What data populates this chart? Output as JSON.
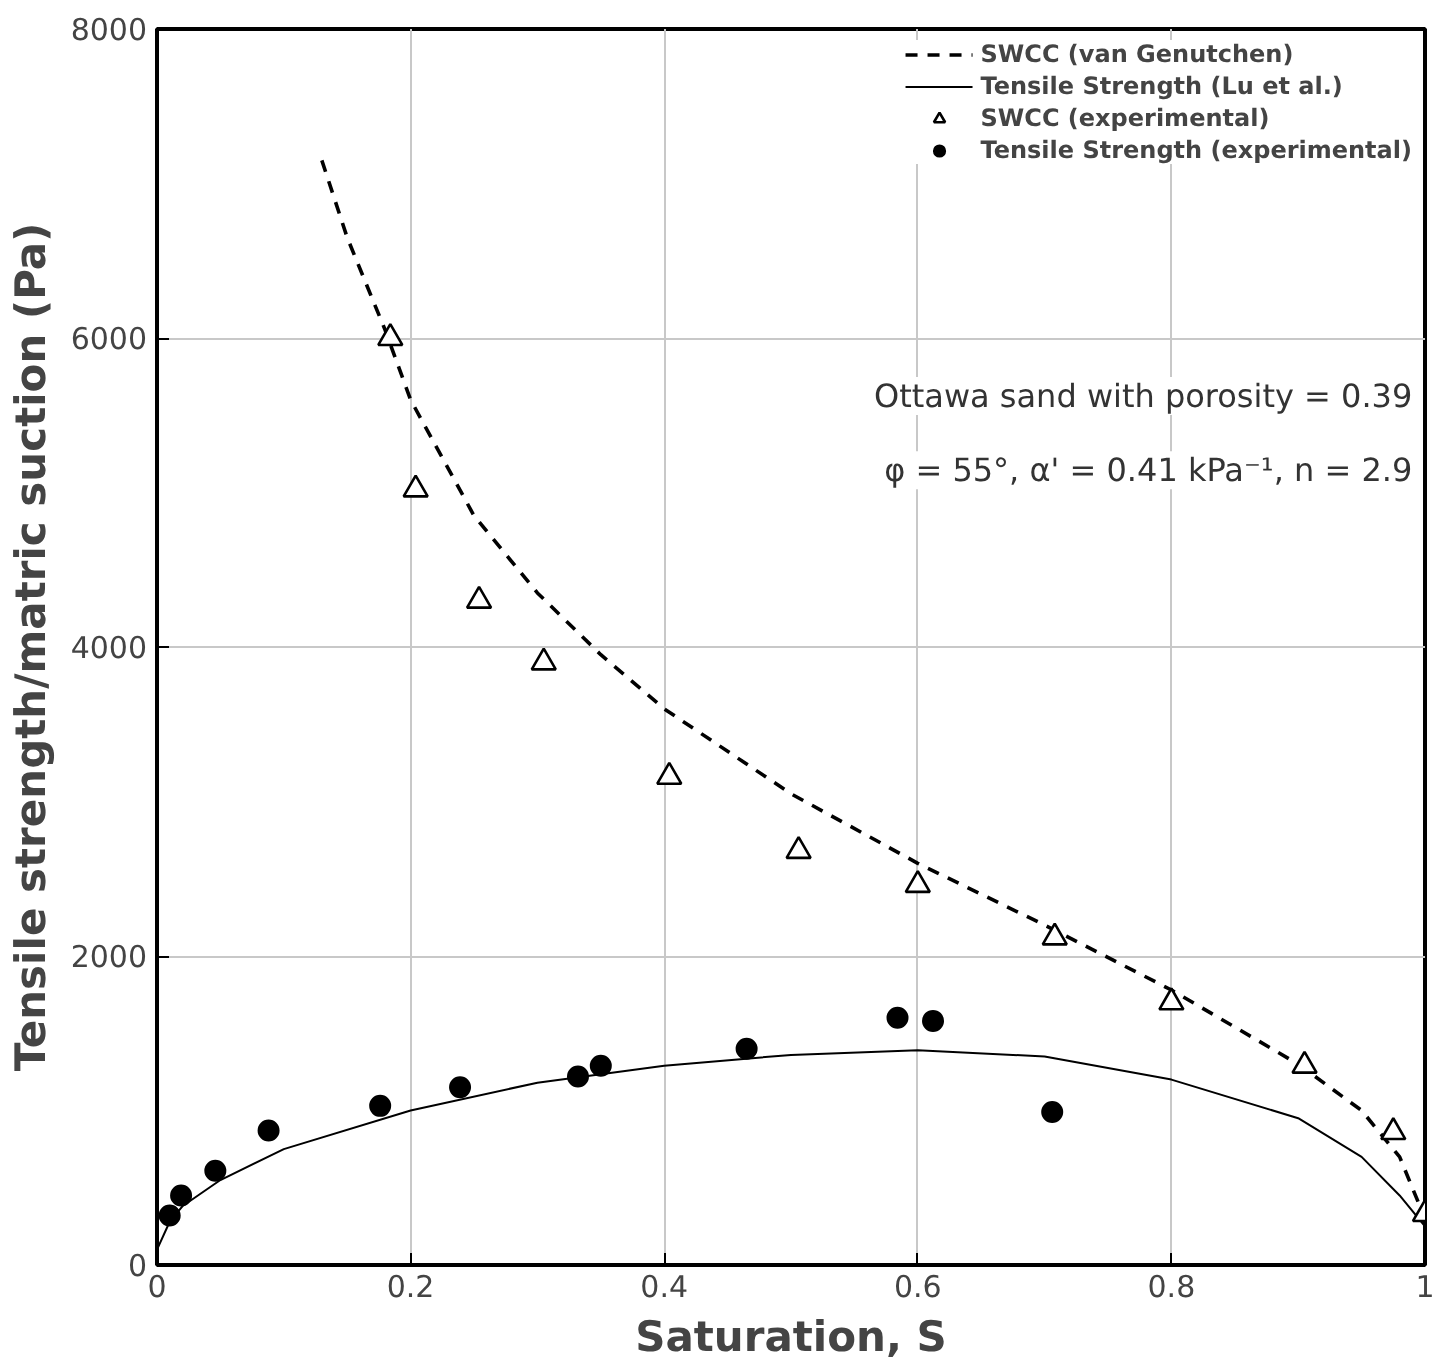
{
  "chart_data": {
    "type": "line",
    "xlabel": "Saturation, S",
    "ylabel": "Tensile strength/matric suction (Pa)",
    "xlim": [
      0,
      1
    ],
    "ylim": [
      0,
      8000
    ],
    "xticks": [
      0,
      {
        "value": 0.2,
        "label": "0.2"
      },
      {
        "value": 0.4,
        "label": "0.4"
      },
      {
        "value": 0.6,
        "label": "0.6"
      },
      {
        "value": 0.8,
        "label": "0.8"
      },
      1
    ],
    "yticks": [
      0,
      2000,
      4000,
      6000,
      8000
    ],
    "grid": true,
    "legend": "top right",
    "annotations": [
      "Ottawa sand with porosity = 0.39",
      "φ = 55°, α' = 0.41 kPa⁻¹, n = 2.9"
    ],
    "series": [
      {
        "name": "SWCC (van Genutchen)",
        "line_style": "dashed",
        "marker": "none",
        "color": "#000000",
        "x": [
          0.13,
          0.15,
          0.18,
          0.2,
          0.25,
          0.3,
          0.35,
          0.4,
          0.5,
          0.6,
          0.7,
          0.8,
          0.9,
          0.95,
          0.98,
          1.0
        ],
        "values": [
          7150,
          6650,
          6050,
          5600,
          4850,
          4350,
          3950,
          3600,
          3050,
          2600,
          2200,
          1780,
          1300,
          1000,
          700,
          300
        ]
      },
      {
        "name": "Tensile Strength (Lu et al.)",
        "line_style": "solid",
        "marker": "none",
        "color": "#000000",
        "x": [
          0,
          0.01,
          0.02,
          0.05,
          0.1,
          0.2,
          0.3,
          0.4,
          0.5,
          0.6,
          0.7,
          0.8,
          0.9,
          0.95,
          0.98,
          1.0
        ],
        "values": [
          100,
          280,
          380,
          550,
          750,
          1000,
          1180,
          1290,
          1360,
          1390,
          1350,
          1200,
          950,
          700,
          450,
          250
        ]
      },
      {
        "name": "SWCC (experimental)",
        "type": "scatter",
        "marker": "triangle",
        "color": "#000000",
        "x": [
          0.184,
          0.204,
          0.254,
          0.305,
          0.404,
          0.506,
          0.6,
          0.708,
          0.8,
          0.905,
          0.975,
          1.0
        ],
        "values": [
          6000,
          5020,
          4300,
          3900,
          3160,
          2680,
          2460,
          2120,
          1700,
          1290,
          860,
          330
        ]
      },
      {
        "name": "Tensile Strength (experimental)",
        "type": "scatter",
        "marker": "circle",
        "color": "#000000",
        "x": [
          0.01,
          0.019,
          0.046,
          0.088,
          0.176,
          0.239,
          0.332,
          0.35,
          0.465,
          0.584,
          0.612,
          0.706
        ],
        "values": [
          320,
          450,
          610,
          870,
          1030,
          1150,
          1220,
          1290,
          1400,
          1600,
          1580,
          990
        ]
      }
    ]
  }
}
